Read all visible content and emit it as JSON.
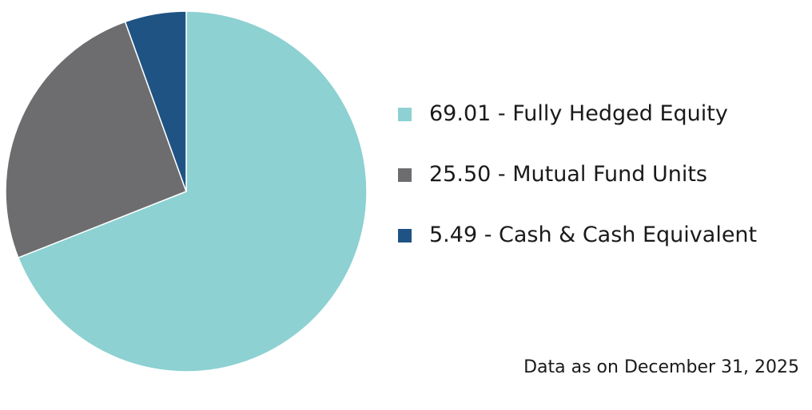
{
  "chart_data": {
    "type": "pie",
    "categories": [
      "Fully Hedged Equity",
      "Mutual Fund Units",
      "Cash & Cash Equivalent"
    ],
    "values": [
      69.01,
      25.5,
      5.49
    ],
    "colors": [
      "#8dd1d2",
      "#6d6d70",
      "#1f5384"
    ],
    "legend_placement": "right",
    "legend_entries": [
      "69.01 - Fully Hedged Equity",
      "25.50 - Mutual Fund Units",
      "5.49 - Cash & Cash Equivalent"
    ]
  },
  "footnote": "Data as on December 31, 2025"
}
